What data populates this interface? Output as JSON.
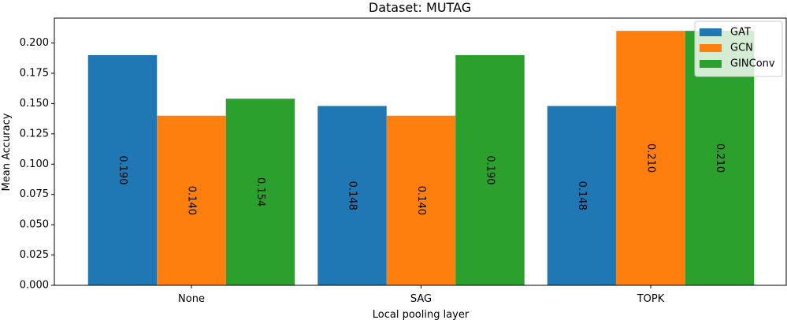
{
  "chart_data": {
    "type": "bar",
    "title": "Dataset: MUTAG",
    "xlabel": "Local pooling layer",
    "ylabel": "Mean Accuracy",
    "categories": [
      "None",
      "SAG",
      "TOPK"
    ],
    "series": [
      {
        "name": "GAT",
        "color": "#1f77b4",
        "values": [
          0.19,
          0.148,
          0.148
        ],
        "labels": [
          "0.190",
          "0.148",
          "0.148"
        ]
      },
      {
        "name": "GCN",
        "color": "#ff7f0e",
        "values": [
          0.14,
          0.14,
          0.21
        ],
        "labels": [
          "0.140",
          "0.140",
          "0.210"
        ]
      },
      {
        "name": "GINConv",
        "color": "#2ca02c",
        "values": [
          0.154,
          0.19,
          0.21
        ],
        "labels": [
          "0.154",
          "0.190",
          "0.210"
        ]
      }
    ],
    "ylim": [
      0,
      0.2205
    ],
    "yticks": [
      0.0,
      0.025,
      0.05,
      0.075,
      0.1,
      0.125,
      0.15,
      0.175,
      0.2
    ],
    "ytick_labels": [
      "0.000",
      "0.025",
      "0.050",
      "0.075",
      "0.100",
      "0.125",
      "0.150",
      "0.175",
      "0.200"
    ],
    "legend_position": "top-right",
    "grid": false
  }
}
